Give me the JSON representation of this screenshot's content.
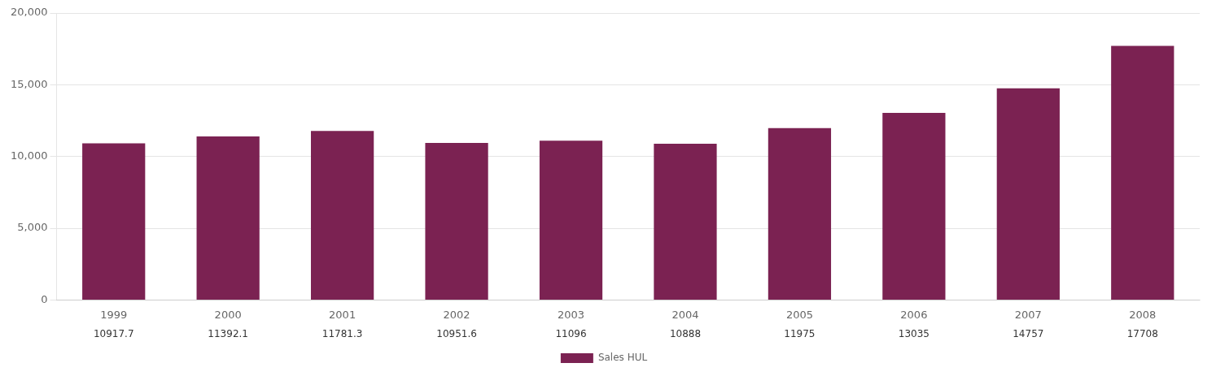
{
  "chart_data": {
    "type": "bar",
    "categories": [
      "1999",
      "2000",
      "2001",
      "2002",
      "2003",
      "2004",
      "2005",
      "2006",
      "2007",
      "2008"
    ],
    "series": [
      {
        "name": "Sales HUL",
        "color": "#7B2252",
        "values": [
          10917.7,
          11392.1,
          11781.3,
          10951.6,
          11096,
          10888,
          11975,
          13035,
          14757,
          17708
        ]
      }
    ],
    "ylim": [
      0,
      20000
    ],
    "yticks": [
      0,
      5000,
      10000,
      15000,
      20000
    ],
    "grid": true,
    "legend": "bottom",
    "data_labels": true
  }
}
